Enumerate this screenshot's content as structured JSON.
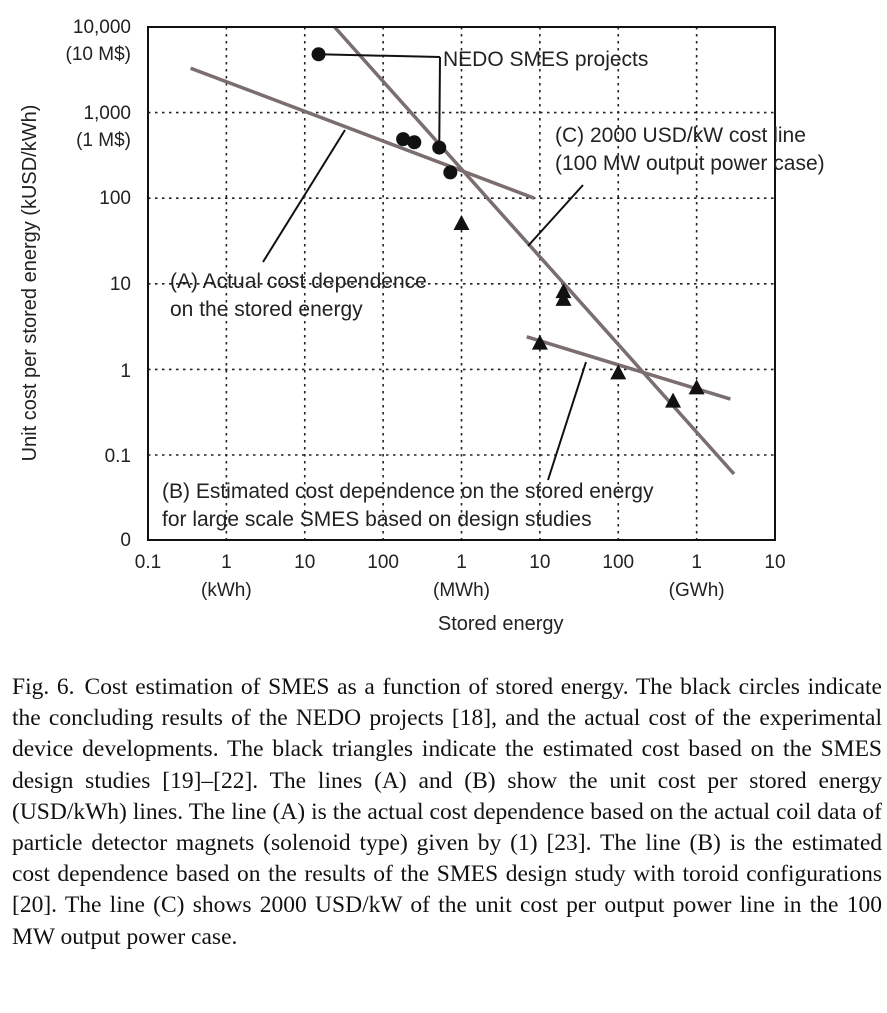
{
  "chart_data": {
    "type": "scatter",
    "x_scale": "log",
    "y_scale": "log",
    "xlabel": "Stored energy",
    "ylabel": "Unit cost per stored energy (kUSD/kWh)",
    "xlim": [
      "0.1 kWh",
      "10 GWh"
    ],
    "ylim": [
      0,
      10000
    ],
    "grid": true,
    "x_ticks": [
      "0.1",
      "1",
      "10",
      "100",
      "1",
      "10",
      "100",
      "1",
      "10"
    ],
    "x_unit_labels": [
      "(kWh)",
      "(MWh)",
      "(GWh)"
    ],
    "y_ticks": [
      "0",
      "0.1",
      "1",
      "10",
      "100",
      "1,000",
      "(1 M$)",
      "10,000",
      "(10 M$)"
    ],
    "series": [
      {
        "name": "NEDO SMES projects",
        "marker": "circle",
        "points": [
          {
            "x_kWh": 15,
            "y_kUSD_per_kWh": 4800
          },
          {
            "x_kWh": 180,
            "y_kUSD_per_kWh": 490
          },
          {
            "x_kWh": 250,
            "y_kUSD_per_kWh": 450
          },
          {
            "x_kWh": 520,
            "y_kUSD_per_kWh": 390
          },
          {
            "x_kWh": 720,
            "y_kUSD_per_kWh": 200
          }
        ]
      },
      {
        "marker": "triangle",
        "points": [
          {
            "x_kWh": 1000,
            "y_kUSD_per_kWh": 50
          },
          {
            "x_kWh": 20000,
            "y_kUSD_per_kWh": 8
          },
          {
            "x_kWh": 20000,
            "y_kUSD_per_kWh": 6.5
          },
          {
            "x_kWh": 10000,
            "y_kUSD_per_kWh": 2
          },
          {
            "x_kWh": 100000,
            "y_kUSD_per_kWh": 0.9
          },
          {
            "x_kWh": 500000,
            "y_kUSD_per_kWh": 0.42
          },
          {
            "x_kWh": 1000000,
            "y_kUSD_per_kWh": 0.6
          }
        ]
      }
    ],
    "lines": [
      {
        "id": "A",
        "label_lines": [
          "(A) Actual cost dependence",
          "on the stored energy"
        ],
        "from": {
          "x_kWh": 0.35,
          "y_kUSD_per_kWh": 3300
        },
        "to": {
          "x_kWh": 8500,
          "y_kUSD_per_kWh": 100
        }
      },
      {
        "id": "B",
        "label_lines": [
          "(B) Estimated cost dependence on the stored energy",
          "for large scale SMES based on design studies"
        ],
        "from": {
          "x_kWh": 6800,
          "y_kUSD_per_kWh": 2.4
        },
        "to": {
          "x_kWh": 2700000,
          "y_kUSD_per_kWh": 0.45
        }
      },
      {
        "id": "C",
        "label_lines": [
          "(C) 2000 USD/kW cost line",
          "(100 MW output power case)"
        ],
        "from": {
          "x_kWh": 24,
          "y_kUSD_per_kWh": 10000
        },
        "to": {
          "x_kWh": 3000000,
          "y_kUSD_per_kWh": 0.06
        }
      }
    ],
    "annotations": [
      {
        "text": "NEDO SMES projects",
        "points_to": "NEDO SMES projects"
      }
    ]
  },
  "caption": {
    "label": "Fig. 6.",
    "text": "Cost estimation of SMES as a function of stored energy. The black circles indicate the concluding results of the NEDO projects [18], and the actual cost of the experimental device developments. The black triangles indicate the estimated cost based on the SMES design studies [19]–[22]. The lines (A) and (B) show the unit cost per stored energy (USD/kWh) lines. The line (A) is the actual cost dependence based on the actual coil data of particle detector magnets (solenoid type) given by (1) [23]. The line (B) is the estimated cost dependence based on the results of the SMES design study with toroid configurations [20]. The line (C) shows 2000 USD/kW of the unit cost per output power line in the 100 MW output power case."
  },
  "colors": {
    "trend_line": "#7a6e6e",
    "marker": "#111111",
    "grid": "#222222",
    "text": "#222222"
  }
}
